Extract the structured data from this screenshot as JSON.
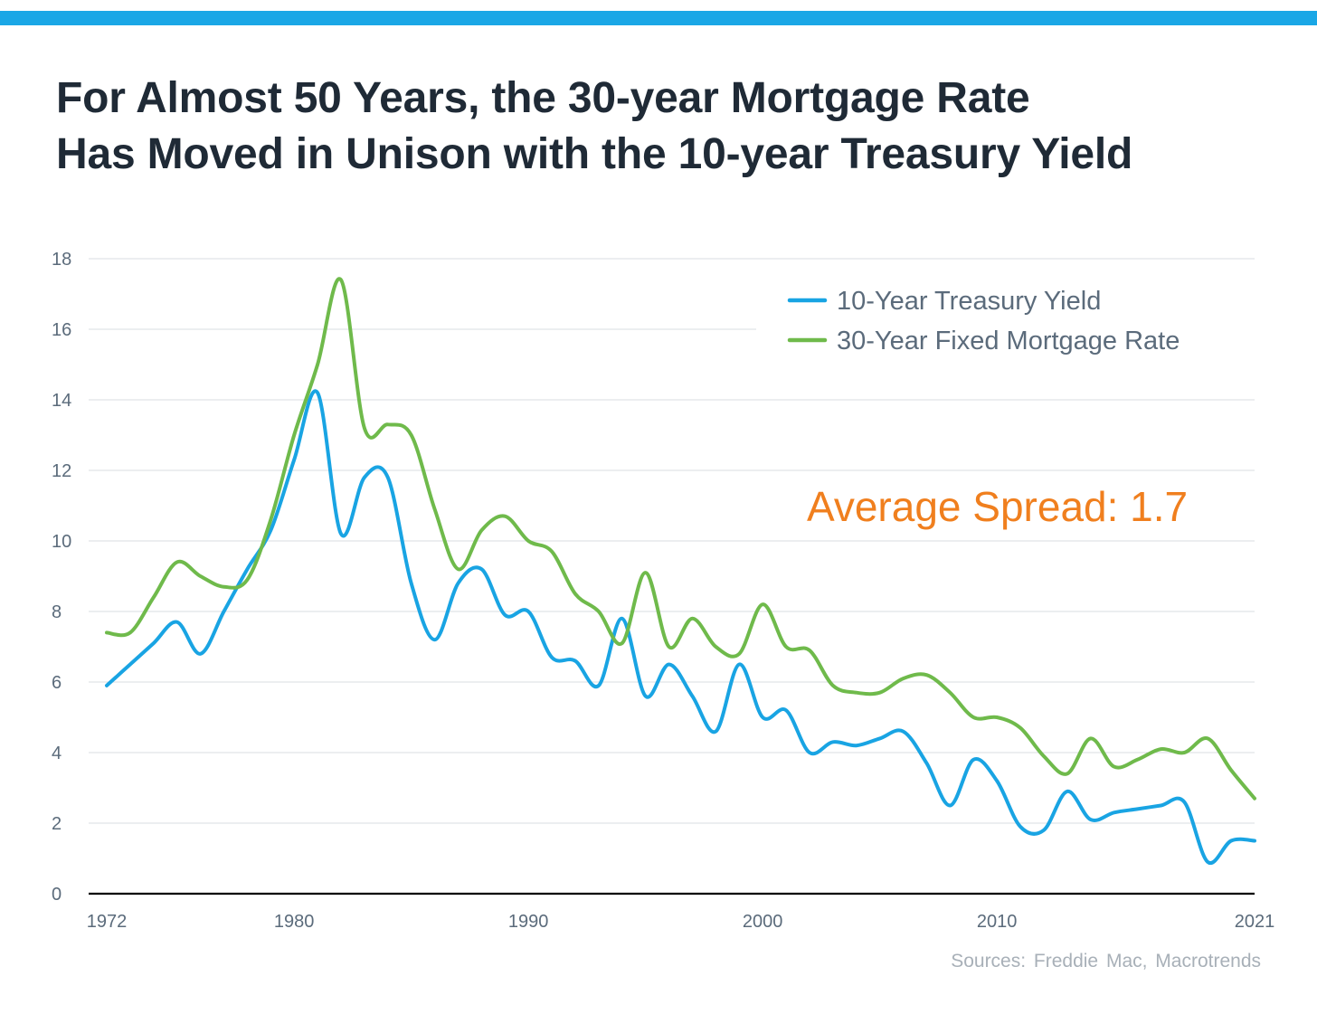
{
  "colors": {
    "accent_bar": "#1aa7e6",
    "title": "#1f2a36",
    "treasury": "#19a4e3",
    "mortgage": "#6fba4b",
    "annotation": "#f07f1e",
    "axis_text": "#5b6b7b",
    "legend_text": "#5b6b7b",
    "source_text": "#a8b0b8",
    "gridline": "#d9dde2",
    "baseline": "#000000"
  },
  "header": {
    "title_line1": "For Almost 50 Years, the 30-year Mortgage Rate",
    "title_line2": "Has Moved in Unison with the 10-year Treasury Yield"
  },
  "footer": {
    "source": "Sources: Freddie Mac, Macrotrends"
  },
  "chart_data": {
    "type": "line",
    "title": "For Almost 50 Years, the 30-year Mortgage Rate Has Moved in Unison with the 10-year Treasury Yield",
    "xlabel": "",
    "ylabel": "",
    "xlim": [
      1972,
      2021
    ],
    "ylim": [
      0,
      18
    ],
    "yticks": [
      0,
      2,
      4,
      6,
      8,
      10,
      12,
      14,
      16,
      18
    ],
    "xtick_labels": [
      "1972",
      "1980",
      "1990",
      "2000",
      "2010",
      "2021"
    ],
    "xtick_values": [
      1972,
      1980,
      1990,
      2000,
      2010,
      2021
    ],
    "grid": true,
    "legend_position": "top-right",
    "x": [
      1972,
      1973,
      1974,
      1975,
      1976,
      1977,
      1978,
      1979,
      1980,
      1981,
      1982,
      1983,
      1984,
      1985,
      1986,
      1987,
      1988,
      1989,
      1990,
      1991,
      1992,
      1993,
      1994,
      1995,
      1996,
      1997,
      1998,
      1999,
      2000,
      2001,
      2002,
      2003,
      2004,
      2005,
      2006,
      2007,
      2008,
      2009,
      2010,
      2011,
      2012,
      2013,
      2014,
      2015,
      2016,
      2017,
      2018,
      2019,
      2020,
      2021
    ],
    "series": [
      {
        "name": "10-Year Treasury Yield",
        "color": "#19a4e3",
        "values": [
          5.9,
          6.5,
          7.1,
          7.7,
          6.8,
          8.0,
          9.2,
          10.3,
          12.3,
          14.2,
          10.2,
          11.8,
          11.8,
          8.8,
          7.2,
          8.8,
          9.2,
          7.9,
          8.0,
          6.7,
          6.6,
          5.9,
          7.8,
          5.6,
          6.5,
          5.6,
          4.6,
          6.5,
          5.0,
          5.2,
          4.0,
          4.3,
          4.2,
          4.4,
          4.6,
          3.7,
          2.5,
          3.8,
          3.2,
          1.9,
          1.8,
          2.9,
          2.1,
          2.3,
          2.4,
          2.5,
          2.6,
          0.9,
          1.5,
          1.5
        ],
        "note": "series plotted through 2021"
      },
      {
        "name": "30-Year Fixed Mortgage Rate",
        "color": "#6fba4b",
        "values": [
          7.4,
          7.4,
          8.4,
          9.4,
          9.0,
          8.7,
          8.9,
          10.6,
          13.0,
          15.0,
          17.4,
          13.2,
          13.3,
          13.0,
          10.9,
          9.2,
          10.3,
          10.7,
          10.0,
          9.7,
          8.5,
          8.0,
          7.1,
          9.1,
          7.0,
          7.8,
          7.0,
          6.8,
          8.2,
          7.0,
          6.9,
          5.9,
          5.7,
          5.7,
          6.1,
          6.2,
          5.7,
          5.0,
          5.0,
          4.7,
          3.9,
          3.4,
          4.4,
          3.6,
          3.8,
          4.1,
          4.0,
          4.4,
          3.5,
          2.7
        ]
      }
    ],
    "annotations": [
      {
        "text": "Average Spread: 1.7",
        "color": "#f07f1e"
      }
    ]
  }
}
